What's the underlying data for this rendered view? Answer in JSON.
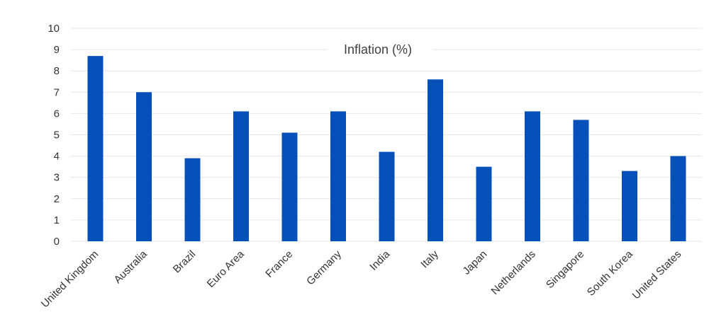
{
  "chart_data": {
    "type": "bar",
    "title": "Inflation (%)",
    "categories": [
      "United Kingdom",
      "Australia",
      "Brazil",
      "Euro Area",
      "France",
      "Germany",
      "India",
      "Italy",
      "Japan",
      "Netherlands",
      "Singapore",
      "South Korea",
      "United States"
    ],
    "values": [
      8.7,
      7.0,
      3.9,
      6.1,
      5.1,
      6.1,
      4.2,
      7.6,
      3.5,
      6.1,
      5.7,
      3.3,
      4.0
    ],
    "ylim": [
      0,
      10
    ],
    "yticks": [
      0,
      1,
      2,
      3,
      4,
      5,
      6,
      7,
      8,
      9,
      10
    ],
    "grid": true,
    "legend": "none",
    "bar_color": "#0550b9",
    "grid_color": "#e6e6e6"
  }
}
